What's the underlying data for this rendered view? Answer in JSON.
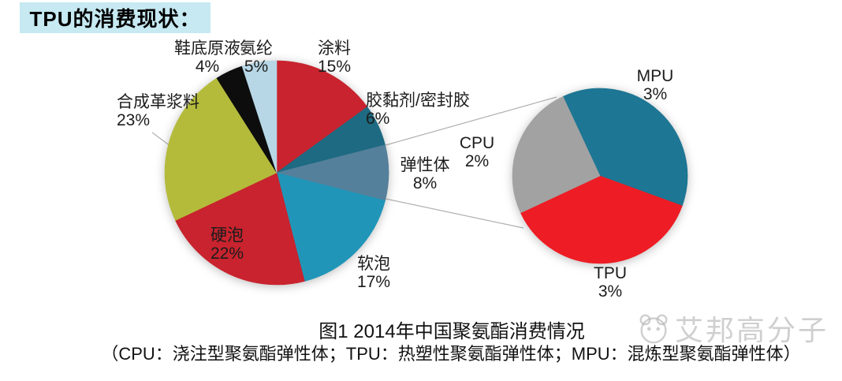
{
  "header": {
    "title": "TPU的消费现状：",
    "bg_color": "#c6e9f2"
  },
  "caption": {
    "line1": "图1 2014年中国聚氨酯消费情况",
    "line2": "（CPU：浇注型聚氨酯弹性体；TPU：热塑性聚氨酯弹性体；MPU：混炼型聚氨酯弹性体）"
  },
  "watermark": {
    "text": "艾邦高分子",
    "icon": "mascot-face-icon",
    "color": "#b2b2b2"
  },
  "chart_data": [
    {
      "type": "pie",
      "name": "main-pie",
      "title": "",
      "categories": [
        "涂料",
        "胶黏剂/密封胶",
        "弹性体",
        "软泡",
        "硬泡",
        "合成革浆料",
        "鞋底原液",
        "氨纶"
      ],
      "ids": [
        "coatings",
        "adhesive-sealant",
        "elastomer",
        "soft-foam",
        "rigid-foam",
        "synthetic-leather-slurry",
        "shoe-sole-stock-solution",
        "spandex"
      ],
      "values": [
        15,
        6,
        8,
        17,
        22,
        23,
        4,
        5
      ],
      "unit": "%",
      "colors": [
        "#c8232e",
        "#1d6a82",
        "#55809b",
        "#2095b8",
        "#c8232e",
        "#b4bb3b",
        "#0d0d0d",
        "#b7d7e6"
      ],
      "start_angle_deg": 0,
      "legend_position": "none",
      "label_style": "category and percent outside slices",
      "center": [
        351,
        219
      ],
      "radius": 142
    },
    {
      "type": "pie",
      "name": "elastomer-breakdown-pie",
      "title": "",
      "categories": [
        "MPU",
        "TPU",
        "CPU"
      ],
      "ids": [
        "mpu",
        "tpu",
        "cpu"
      ],
      "values": [
        3,
        3,
        2
      ],
      "unit": "%",
      "colors": [
        "#1d7694",
        "#ee1c24",
        "#a2a2a2"
      ],
      "start_angle_deg": -25,
      "legend_position": "none",
      "label_style": "category and percent outside slices",
      "center": [
        761,
        223
      ],
      "radius": 111
    }
  ],
  "connector_color": "#b0b0b0"
}
